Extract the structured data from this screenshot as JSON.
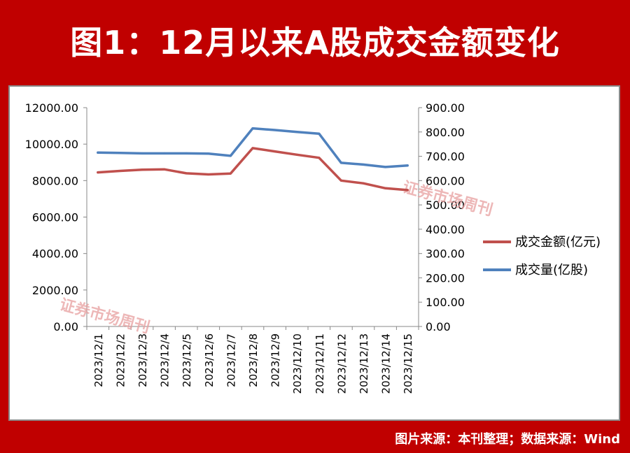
{
  "header": {
    "title": "图1：12月以来A股成交金额变化"
  },
  "footer": {
    "source": "图片来源：本刊整理；数据来源：Wind"
  },
  "watermark": {
    "text": "证券市场周刊"
  },
  "colors": {
    "background": "#c00000",
    "amount_series": "#c0504d",
    "volume_series": "#4f81bd",
    "axis": "#888888",
    "text": "#000000"
  },
  "chart_data": {
    "type": "line",
    "title": "",
    "xlabel": "",
    "ylabel": "",
    "y2label": "",
    "grid": false,
    "legend_position": "right",
    "categories": [
      "2023/12/1",
      "2023/12/2",
      "2023/12/3",
      "2023/12/4",
      "2023/12/5",
      "2023/12/6",
      "2023/12/7",
      "2023/12/8",
      "2023/12/9",
      "2023/12/10",
      "2023/12/11",
      "2023/12/12",
      "2023/12/13",
      "2023/12/14",
      "2023/12/15"
    ],
    "ylim": [
      0,
      12000
    ],
    "y_ticks": [
      "0.00",
      "2000.00",
      "4000.00",
      "6000.00",
      "8000.00",
      "10000.00",
      "12000.00"
    ],
    "y2lim": [
      0,
      900
    ],
    "y2_ticks": [
      "0.00",
      "100.00",
      "200.00",
      "300.00",
      "400.00",
      "500.00",
      "600.00",
      "700.00",
      "800.00",
      "900.00"
    ],
    "series": [
      {
        "name": "成交金额(亿元)",
        "axis": "left",
        "color": "#c0504d",
        "values": [
          8450,
          8530,
          8600,
          8620,
          8400,
          8340,
          8390,
          9780,
          9600,
          9420,
          9250,
          8000,
          7850,
          7580,
          7480
        ]
      },
      {
        "name": "成交量(亿股)",
        "axis": "right",
        "color": "#4f81bd",
        "values": [
          715,
          714,
          712,
          712,
          712,
          711,
          702,
          815,
          808,
          800,
          793,
          673,
          666,
          656,
          662
        ]
      }
    ]
  }
}
